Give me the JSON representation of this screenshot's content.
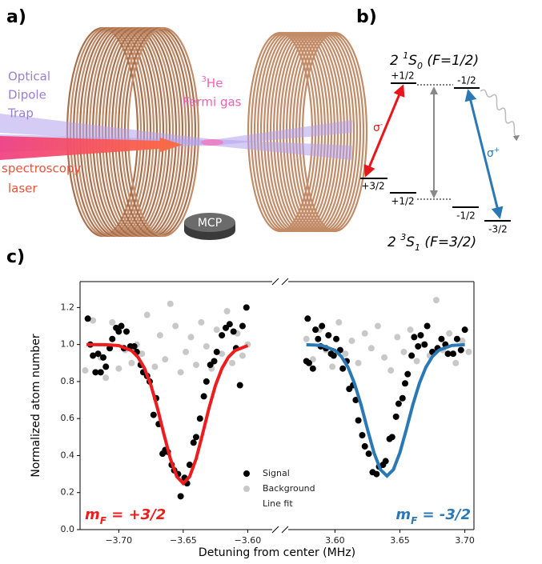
{
  "panel_labels": [
    "a)",
    "b)",
    "c)"
  ],
  "illustration": {
    "trap_label": [
      "Optical",
      "Dipole",
      "Trap"
    ],
    "gas_label": {
      "sup": "3",
      "main": "He",
      "line2": "Fermi gas"
    },
    "laser_label": [
      "spectroscopy",
      "laser"
    ],
    "detector": "MCP"
  },
  "level_diagram": {
    "upper_state": {
      "n": "2 ",
      "sup": "1",
      "sym": "S",
      "sub": "0",
      "tail": " (F=1/2)"
    },
    "lower_state": {
      "n": "2 ",
      "sup": "3",
      "sym": "S",
      "sub": "1",
      "tail": " (F=3/2)"
    },
    "upper_levels": [
      "+1/2",
      "-1/2"
    ],
    "lower_levels": [
      "+3/2",
      "+1/2",
      "-1/2",
      "-3/2"
    ],
    "sigma_minus": {
      "sym": "σ",
      "sup": "-"
    },
    "sigma_plus": {
      "sym": "σ",
      "sup": "+"
    }
  },
  "chart_data": [
    {
      "type": "scatter",
      "ylabel": "Normalized atom number",
      "xlabel": "Detuning from center (MHz)",
      "xlim": [
        -3.73,
        -3.581
      ],
      "ylim": [
        0,
        1.34
      ],
      "xticks": [
        {
          "value": -3.7,
          "label": "−3.70"
        },
        {
          "value": -3.65,
          "label": "−3.65"
        },
        {
          "value": -3.6,
          "label": "−3.60"
        }
      ],
      "yticks": [
        {
          "value": 0,
          "label": "0.0"
        },
        0.2,
        0.4,
        0.6,
        0.8,
        {
          "value": 1,
          "label": "1.0"
        },
        1.2
      ],
      "legend": "lower center",
      "grid": false,
      "annotation": {
        "main": "m",
        "sub": "F",
        "tail": " = +3/2"
      },
      "series": [
        {
          "name": "Signal",
          "color": "#000000",
          "x": [
            -3.724,
            -3.722,
            -3.72,
            -3.718,
            -3.716,
            -3.714,
            -3.712,
            -3.71,
            -3.707,
            -3.705,
            -3.702,
            -3.7,
            -3.698,
            -3.696,
            -3.694,
            -3.691,
            -3.688,
            -3.686,
            -3.683,
            -3.681,
            -3.678,
            -3.676,
            -3.673,
            -3.671,
            -3.669,
            -3.666,
            -3.664,
            -3.662,
            -3.659,
            -3.657,
            -3.654,
            -3.652,
            -3.649,
            -3.647,
            -3.645,
            -3.642,
            -3.64,
            -3.637,
            -3.634,
            -3.632,
            -3.629,
            -3.626,
            -3.624,
            -3.62,
            -3.617,
            -3.614,
            -3.611,
            -3.609,
            -3.606,
            -3.604,
            -3.601
          ],
          "values": [
            1.14,
            1.0,
            0.94,
            0.85,
            0.95,
            0.85,
            0.93,
            0.88,
            0.98,
            1.03,
            1.09,
            1.07,
            1.1,
            0.98,
            1.07,
            0.99,
            0.99,
            0.96,
            0.89,
            0.85,
            0.83,
            0.8,
            0.62,
            0.71,
            0.57,
            0.41,
            0.43,
            0.42,
            0.35,
            0.32,
            0.3,
            0.18,
            0.28,
            0.25,
            0.35,
            0.47,
            0.5,
            0.6,
            0.72,
            0.8,
            0.89,
            0.91,
            0.96,
            1.05,
            1.09,
            1.11,
            1.07,
            0.98,
            0.78,
            1.1,
            1.2
          ]
        },
        {
          "name": "Background",
          "color": "#c8c8c8",
          "x": [
            -3.726,
            -3.72,
            -3.714,
            -3.71,
            -3.705,
            -3.7,
            -3.695,
            -3.69,
            -3.686,
            -3.682,
            -3.678,
            -3.672,
            -3.668,
            -3.664,
            -3.66,
            -3.656,
            -3.652,
            -3.648,
            -3.644,
            -3.64,
            -3.636,
            -3.632,
            -3.628,
            -3.624,
            -3.62,
            -3.616,
            -3.612,
            -3.608,
            -3.604,
            -3.6
          ],
          "values": [
            0.86,
            1.13,
            0.93,
            0.82,
            1.12,
            0.87,
            0.97,
            0.9,
            1.0,
            0.95,
            1.16,
            0.88,
            1.05,
            0.92,
            1.22,
            1.1,
            0.85,
            0.96,
            1.04,
            0.89,
            1.12,
            0.99,
            0.87,
            1.08,
            0.95,
            1.18,
            0.9,
            1.06,
            0.94,
            1.0
          ]
        },
        {
          "name": "Line fit",
          "color": "#ee1c1c",
          "type": "line",
          "x": [
            -3.725,
            -3.71,
            -3.7,
            -3.69,
            -3.685,
            -3.68,
            -3.675,
            -3.67,
            -3.665,
            -3.66,
            -3.655,
            -3.65,
            -3.645,
            -3.64,
            -3.635,
            -3.63,
            -3.625,
            -3.62,
            -3.615,
            -3.61,
            -3.6
          ],
          "values": [
            1.0,
            0.999,
            0.994,
            0.967,
            0.931,
            0.871,
            0.779,
            0.657,
            0.516,
            0.383,
            0.286,
            0.25,
            0.286,
            0.383,
            0.516,
            0.657,
            0.779,
            0.871,
            0.931,
            0.967,
            0.994
          ]
        }
      ]
    },
    {
      "type": "scatter",
      "xlim": [
        3.564,
        3.707
      ],
      "ylim": [
        0,
        1.34
      ],
      "xticks": [
        {
          "value": 3.6,
          "label": "3.60"
        },
        {
          "value": 3.65,
          "label": "3.65"
        },
        {
          "value": 3.7,
          "label": "3.70"
        }
      ],
      "grid": false,
      "annotation": {
        "main": "m",
        "sub": "F",
        "tail": " = -3/2"
      },
      "series": [
        {
          "color": "#000000",
          "x": [
            3.578,
            3.579,
            3.58,
            3.583,
            3.585,
            3.587,
            3.589,
            3.59,
            3.593,
            3.595,
            3.597,
            3.599,
            3.601,
            3.604,
            3.606,
            3.609,
            3.611,
            3.614,
            3.616,
            3.618,
            3.621,
            3.623,
            3.626,
            3.629,
            3.632,
            3.634,
            3.637,
            3.639,
            3.642,
            3.644,
            3.647,
            3.649,
            3.652,
            3.654,
            3.656,
            3.659,
            3.661,
            3.664,
            3.666,
            3.669,
            3.671,
            3.675,
            3.679,
            3.682,
            3.685,
            3.687,
            3.691,
            3.694,
            3.697,
            3.7
          ],
          "values": [
            0.91,
            1.14,
            0.9,
            0.87,
            1.08,
            1.03,
            0.99,
            1.1,
            0.98,
            1.05,
            0.95,
            0.94,
            1.03,
            0.97,
            0.87,
            0.91,
            0.76,
            0.78,
            0.7,
            0.59,
            0.51,
            0.45,
            0.41,
            0.31,
            0.3,
            0.34,
            0.35,
            0.37,
            0.49,
            0.5,
            0.61,
            0.68,
            0.71,
            0.79,
            0.84,
            0.94,
            1.04,
            0.99,
            1.05,
            1.0,
            1.1,
            0.96,
            0.98,
            1.03,
            1.0,
            0.95,
            0.95,
            1.03,
            0.97,
            1.08
          ]
        },
        {
          "color": "#c8c8c8",
          "x": [
            3.578,
            3.583,
            3.588,
            3.593,
            3.598,
            3.603,
            3.608,
            3.613,
            3.618,
            3.623,
            3.628,
            3.633,
            3.638,
            3.643,
            3.648,
            3.653,
            3.658,
            3.663,
            3.668,
            3.673,
            3.678,
            3.683,
            3.688,
            3.693,
            3.698,
            3.703
          ],
          "values": [
            1.03,
            0.92,
            1.08,
            0.97,
            0.88,
            1.12,
            0.95,
            1.02,
            0.9,
            1.06,
            0.98,
            1.1,
            0.93,
            0.86,
            1.04,
            0.96,
            1.08,
            0.91,
            1.0,
            0.94,
            1.24,
            0.97,
            1.06,
            0.9,
            1.02,
            0.96
          ]
        },
        {
          "color": "#2a79b5",
          "type": "line",
          "x": [
            3.578,
            3.59,
            3.6,
            3.605,
            3.61,
            3.615,
            3.62,
            3.625,
            3.63,
            3.635,
            3.64,
            3.645,
            3.65,
            3.655,
            3.66,
            3.665,
            3.67,
            3.675,
            3.68,
            3.69,
            3.7
          ],
          "values": [
            0.999,
            0.995,
            0.969,
            0.935,
            0.878,
            0.791,
            0.675,
            0.542,
            0.416,
            0.324,
            0.29,
            0.324,
            0.416,
            0.542,
            0.675,
            0.791,
            0.878,
            0.935,
            0.969,
            0.995,
            0.999
          ]
        }
      ]
    }
  ]
}
